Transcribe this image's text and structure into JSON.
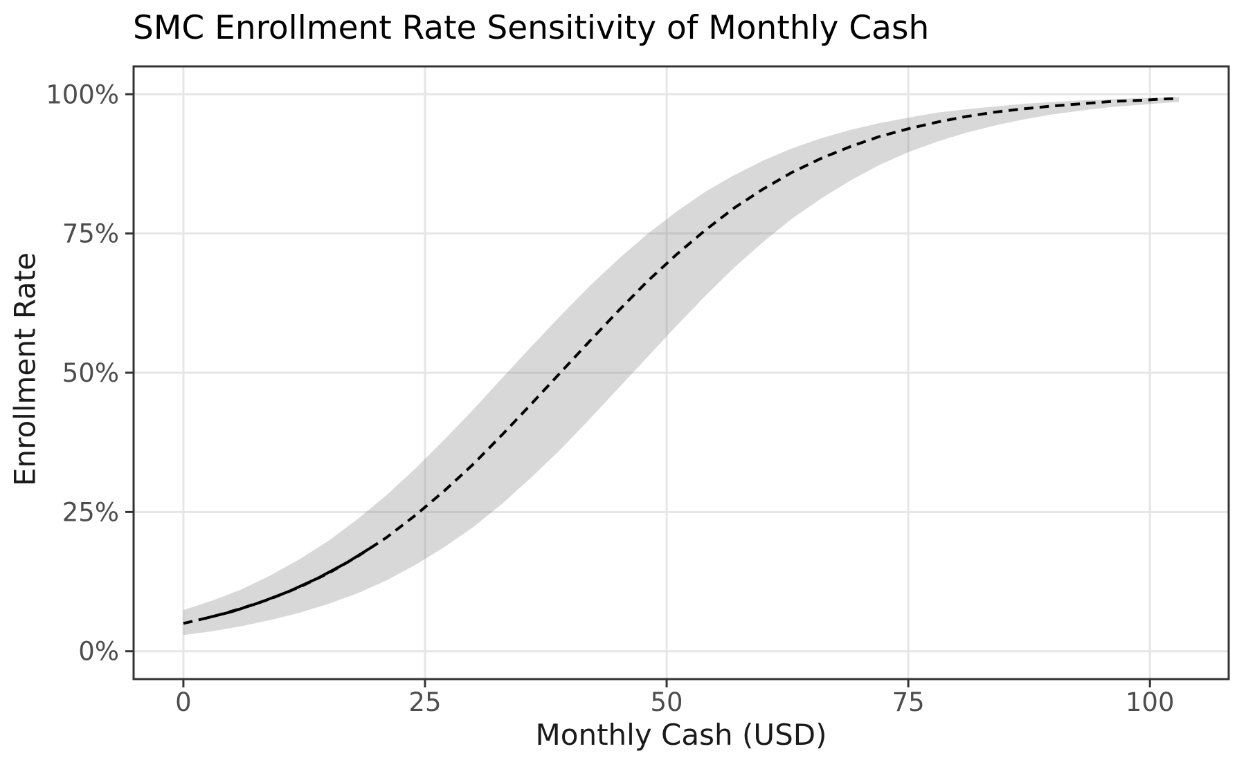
{
  "colors": {
    "background": "#FFFFFF",
    "panel_border": "#333333",
    "grid": "#E6E6E6",
    "tick": "#333333",
    "tick_label": "#4D4D4D",
    "axis_title": "#1A1A1A",
    "title": "#000000",
    "line": "#000000",
    "band_fill": "rgba(127,127,127,0.30)"
  },
  "chart_data": {
    "type": "line",
    "title": "SMC Enrollment Rate Sensitivity of Monthly Cash",
    "xlabel": "Monthly Cash (USD)",
    "ylabel": "Enrollment Rate",
    "grid": "major-only",
    "legend": "none",
    "xlim": [
      0,
      103
    ],
    "ylim": [
      0,
      100
    ],
    "x_panel_range": [
      -5.15,
      108.15
    ],
    "y_panel_range": [
      -5,
      105
    ],
    "x_ticks": [
      0,
      25,
      50,
      75,
      100
    ],
    "x_tick_labels": [
      "0",
      "25",
      "50",
      "75",
      "100"
    ],
    "y_ticks": [
      0,
      25,
      50,
      75,
      100
    ],
    "y_tick_labels": [
      "0%",
      "25%",
      "50%",
      "75%",
      "100%"
    ],
    "band": {
      "name": "confidence-band",
      "x": [
        0,
        3,
        6,
        9,
        12,
        15,
        18,
        21,
        24,
        27,
        30,
        33,
        36,
        39,
        42,
        45,
        48,
        51,
        54,
        57,
        60,
        63,
        66,
        69,
        72,
        75,
        78,
        81,
        84,
        87,
        90,
        93,
        96,
        99,
        102,
        103
      ],
      "upper": [
        7.4,
        9.1,
        11.1,
        13.6,
        16.5,
        19.8,
        23.7,
        28.0,
        32.8,
        38.0,
        43.4,
        49.1,
        54.7,
        60.2,
        65.5,
        70.4,
        74.9,
        78.9,
        82.5,
        85.5,
        88.1,
        90.3,
        92.1,
        93.6,
        94.8,
        95.8,
        96.7,
        97.3,
        97.8,
        98.3,
        98.6,
        98.9,
        99.1,
        99.3,
        99.4,
        99.5
      ],
      "lower": [
        2.9,
        3.6,
        4.5,
        5.6,
        6.9,
        8.5,
        10.4,
        12.7,
        15.5,
        18.7,
        22.3,
        26.5,
        31.2,
        36.2,
        41.6,
        47.2,
        52.8,
        58.4,
        63.8,
        68.9,
        73.5,
        77.7,
        81.3,
        84.5,
        87.3,
        89.6,
        91.5,
        93.1,
        94.4,
        95.5,
        96.4,
        97.1,
        97.7,
        98.1,
        98.5,
        98.6
      ]
    },
    "series": [
      {
        "name": "fitted-enrollment-curve",
        "style": "dashed",
        "x": [
          0,
          3,
          6,
          9,
          12,
          15,
          18,
          21,
          24,
          27,
          30,
          33,
          36,
          39,
          42,
          45,
          48,
          51,
          54,
          57,
          60,
          63,
          66,
          69,
          72,
          75,
          78,
          81,
          84,
          87,
          90,
          93,
          96,
          99,
          102,
          103
        ],
        "y": [
          5.0,
          6.2,
          7.7,
          9.4,
          11.5,
          14.0,
          17.0,
          20.4,
          24.4,
          28.8,
          33.6,
          38.9,
          44.4,
          50.0,
          55.6,
          61.1,
          66.4,
          71.2,
          75.6,
          79.6,
          83.0,
          86.0,
          88.5,
          90.6,
          92.4,
          93.8,
          95.0,
          96.0,
          96.8,
          97.4,
          97.9,
          98.3,
          98.7,
          98.9,
          99.2,
          99.2
        ]
      },
      {
        "name": "observed-range-solid-segment",
        "style": "solid",
        "x": [
          2,
          5,
          8,
          11,
          14,
          17,
          19.5
        ],
        "y": [
          5.8,
          7.1,
          8.8,
          10.8,
          13.2,
          16.0,
          18.7
        ]
      }
    ]
  }
}
